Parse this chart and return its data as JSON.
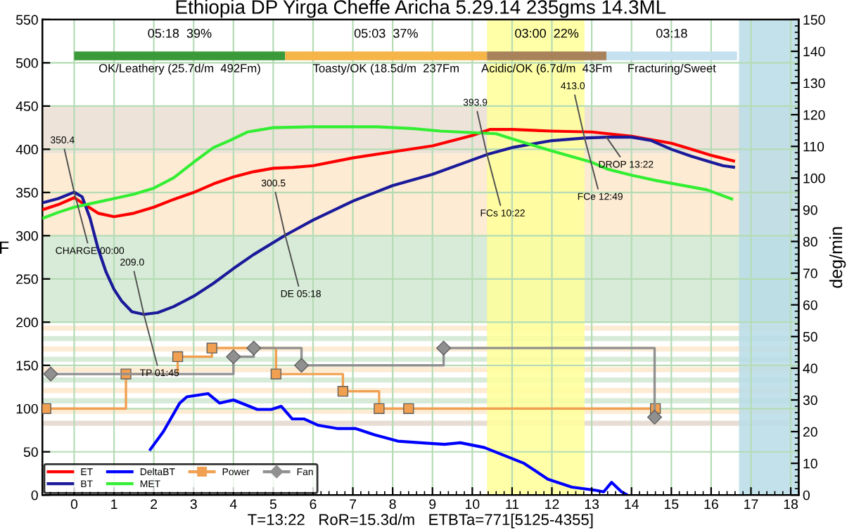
{
  "chart_data": {
    "type": "line",
    "title": "Ethiopia DP Yirga Cheffe Aricha 5.29.14 235gms 14.3ML",
    "xlabel": "T=13:22   RoR=15.3d/m   ETBTa=771[5125-4355]",
    "ylabel": "F",
    "y2label": "deg/min",
    "xlim": [
      -0.8,
      18.2
    ],
    "xticks": [
      0,
      1,
      2,
      3,
      4,
      5,
      6,
      7,
      8,
      9,
      10,
      11,
      12,
      13,
      14,
      15,
      16,
      17,
      18
    ],
    "ylim": [
      0,
      550
    ],
    "yticks": [
      0,
      50,
      100,
      150,
      200,
      250,
      300,
      350,
      400,
      450,
      500,
      550
    ],
    "y2lim": [
      0,
      150
    ],
    "y2ticks": [
      0,
      10,
      20,
      30,
      40,
      50,
      60,
      70,
      80,
      90,
      100,
      110,
      120,
      130,
      140,
      150
    ],
    "grid": true,
    "legend": "bottom left",
    "series": [
      {
        "name": "ET",
        "color": "#ff0000",
        "x": [
          -0.8,
          -0.4,
          0,
          0.3,
          0.6,
          1,
          1.5,
          2,
          2.5,
          3,
          3.5,
          4,
          4.5,
          5,
          5.5,
          6,
          7,
          8,
          9,
          10,
          10.45,
          11,
          12,
          13,
          14,
          15,
          15.5,
          16,
          16.6
        ],
        "values": [
          330,
          336,
          344,
          335,
          326,
          322,
          326,
          333,
          342,
          350,
          360,
          368,
          374,
          378,
          379,
          381,
          390,
          397,
          404,
          416,
          423,
          423,
          421,
          420,
          415,
          407,
          400,
          393,
          386
        ]
      },
      {
        "name": "BT",
        "color": "#1a1a9a",
        "x": [
          -0.8,
          -0.4,
          0,
          0.2,
          0.4,
          0.6,
          0.8,
          1.0,
          1.2,
          1.45,
          1.75,
          2.1,
          2.5,
          3,
          3.5,
          4,
          4.5,
          5.3,
          6,
          7,
          8,
          9,
          10.37,
          11,
          12,
          12.82,
          13.37,
          14,
          14.5,
          15,
          15.5,
          16,
          16.3,
          16.6
        ],
        "values": [
          338,
          343,
          350.4,
          345,
          320,
          285,
          258,
          238,
          224,
          212,
          209.0,
          211,
          218,
          230,
          245,
          262,
          278,
          300.5,
          318,
          340,
          358,
          371,
          393.9,
          402,
          410,
          413.0,
          414,
          414,
          410,
          400,
          392,
          385,
          381,
          379
        ]
      },
      {
        "name": "DeltaBT",
        "axis": "y2",
        "color": "#0000ff",
        "x": [
          1.89,
          2.24,
          2.65,
          2.83,
          3.36,
          3.65,
          4.0,
          4.6,
          4.95,
          5.2,
          5.48,
          5.78,
          6.13,
          6.6,
          7.06,
          7.54,
          8.13,
          8.7,
          9.3,
          9.7,
          10.3,
          10.7,
          11.3,
          11.9,
          12.5,
          13.1,
          13.3,
          13.5,
          13.75,
          13.9
        ],
        "values": [
          14,
          20,
          29,
          31,
          32,
          29,
          30,
          27,
          27,
          28,
          24,
          24,
          22,
          21,
          21,
          19,
          17,
          16.5,
          16,
          16.5,
          15,
          13,
          10,
          5,
          2.5,
          1.5,
          1,
          4,
          1,
          0
        ]
      },
      {
        "name": "MET",
        "color": "#33ee33",
        "x": [
          -0.8,
          -0.4,
          0,
          0.5,
          1,
          1.5,
          2,
          2.5,
          3,
          3.5,
          3.9,
          4.35,
          5,
          6,
          7,
          7.6,
          8.5,
          9.2,
          10.6,
          11,
          12,
          13,
          13.4,
          14,
          14.6,
          15.9,
          16.55
        ],
        "values": [
          320,
          327,
          333,
          338,
          343,
          348,
          355,
          367,
          385,
          402,
          410,
          420,
          425,
          426,
          426,
          426,
          424,
          421,
          418,
          412,
          398,
          385,
          377,
          370,
          364,
          353,
          342
        ]
      },
      {
        "name": "Power",
        "type": "step",
        "marker": "square",
        "color": "#f0a050",
        "x": [
          -0.71,
          1.3,
          2.6,
          3.46,
          5.07,
          6.75,
          7.66,
          8.4,
          14.6
        ],
        "values": [
          100,
          140,
          160,
          170,
          140,
          120,
          100,
          100,
          100
        ]
      },
      {
        "name": "Fan",
        "type": "step",
        "marker": "diamond",
        "color": "#909090",
        "x": [
          -0.59,
          4.0,
          4.51,
          5.71,
          9.28,
          14.58
        ],
        "values": [
          140,
          160,
          170,
          150,
          170,
          90
        ]
      },
      {
        "color": "#3a9a3a",
        "x": [
          0,
          5.3
        ],
        "values": [
          508,
          508
        ]
      },
      {
        "color": "#f5b548",
        "x": [
          5.3,
          10.37
        ],
        "values": [
          508,
          508
        ]
      },
      {
        "color": "#a8825a",
        "x": [
          10.37,
          13.37
        ],
        "values": [
          508,
          508
        ]
      },
      {
        "color": "#c5e0ee",
        "x": [
          13.37,
          16.65
        ],
        "values": [
          508,
          508
        ]
      }
    ],
    "bands": [
      {
        "axis": "y",
        "from": 395,
        "to": 450,
        "color": "#ede3d9"
      },
      {
        "axis": "y",
        "from": 300,
        "to": 395,
        "color": "#fdebd3"
      },
      {
        "axis": "y",
        "from": 200,
        "to": 300,
        "color": "#d8ebd8"
      },
      {
        "axis": "y",
        "from": 190,
        "to": 196,
        "color": "#fdebd3"
      },
      {
        "axis": "y",
        "from": 178,
        "to": 184,
        "color": "#d8ebd8"
      },
      {
        "axis": "y",
        "from": 166,
        "to": 172,
        "color": "#fdebd3"
      },
      {
        "axis": "y",
        "from": 154,
        "to": 160,
        "color": "#d8ebd8"
      },
      {
        "axis": "y",
        "from": 142,
        "to": 148,
        "color": "#fdebd3"
      },
      {
        "axis": "y",
        "from": 130,
        "to": 136,
        "color": "#d8ebd8"
      },
      {
        "axis": "y",
        "from": 118,
        "to": 124,
        "color": "#fdebd3"
      },
      {
        "axis": "y",
        "from": 106,
        "to": 112,
        "color": "#d8ebd8"
      },
      {
        "axis": "y",
        "from": 94,
        "to": 100,
        "color": "#fdebd3"
      },
      {
        "axis": "y",
        "from": 80,
        "to": 86,
        "color": "#e8ddd4"
      },
      {
        "axis": "x",
        "from": 10.37,
        "to": 12.82,
        "color": "#ffff99"
      },
      {
        "axis": "x",
        "from": 16.7,
        "to": 18.2,
        "color": "#b9dce8"
      }
    ],
    "annotations": [
      {
        "text": "350.4",
        "x": 0,
        "y": 350.4
      },
      {
        "text": "CHARGE 00:00",
        "x": 0,
        "y": 350.4
      },
      {
        "text": "209.0",
        "x": 1.75,
        "y": 209.0
      },
      {
        "text": "TP 01:45",
        "x": 1.75,
        "y": 209.0
      },
      {
        "text": "300.5",
        "x": 5.3,
        "y": 300.5
      },
      {
        "text": "DE 05:18",
        "x": 5.3,
        "y": 300.5
      },
      {
        "text": "393.9",
        "x": 10.37,
        "y": 393.9
      },
      {
        "text": "FCs 10:22",
        "x": 10.37,
        "y": 393.9
      },
      {
        "text": "413.0",
        "x": 12.82,
        "y": 413.0
      },
      {
        "text": "FCe 12:49",
        "x": 12.82,
        "y": 413.0
      },
      {
        "text": "DROP 13:22",
        "x": 13.37,
        "y": 414
      },
      "05:18  39%",
      "OK/Leathery (25.7d/m  492Fm)",
      "05:03  37%",
      "Toasty/OK (18.5d/m  237Fm",
      "03:00  22%",
      "Acidic/OK (6.7d/m  43Fm",
      "03:18",
      "Fracturing/Sweet"
    ]
  }
}
